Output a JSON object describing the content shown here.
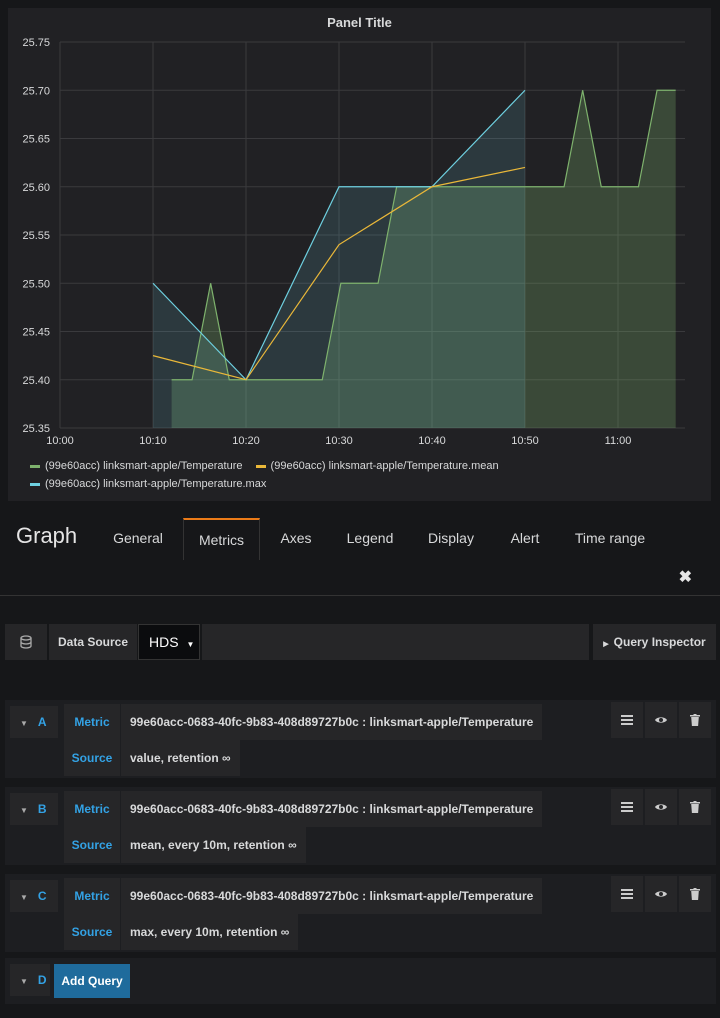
{
  "panel": {
    "title": "Panel Title"
  },
  "chart_data": {
    "type": "line",
    "title": "Panel Title",
    "xlabel": "",
    "ylabel": "",
    "ylim": [
      25.35,
      25.75
    ],
    "yticks": [
      "25.75",
      "25.70",
      "25.65",
      "25.60",
      "25.55",
      "25.50",
      "25.45",
      "25.40",
      "25.35"
    ],
    "xticks": [
      "10:00",
      "10:10",
      "10:20",
      "10:30",
      "10:40",
      "10:50",
      "11:00"
    ],
    "x_unit": "minutes after 10:00",
    "series": [
      {
        "name": "(99e60acc) linksmart-apple/Temperature",
        "color": "#7eb26d",
        "fill": true,
        "points": [
          [
            12,
            25.4
          ],
          [
            14.2,
            25.4
          ],
          [
            16.2,
            25.5
          ],
          [
            18.2,
            25.4
          ],
          [
            20.2,
            25.4
          ],
          [
            28.2,
            25.4
          ],
          [
            30.2,
            25.5
          ],
          [
            34.2,
            25.5
          ],
          [
            36.2,
            25.6
          ],
          [
            54.2,
            25.6
          ],
          [
            56.2,
            25.7
          ],
          [
            58.2,
            25.6
          ],
          [
            62.2,
            25.6
          ],
          [
            64.2,
            25.7
          ],
          [
            66.2,
            25.7
          ]
        ]
      },
      {
        "name": "(99e60acc) linksmart-apple/Temperature.mean",
        "color": "#eab839",
        "fill": false,
        "points": [
          [
            10,
            25.425
          ],
          [
            20,
            25.4
          ],
          [
            30,
            25.54
          ],
          [
            40,
            25.6
          ],
          [
            50,
            25.62
          ]
        ]
      },
      {
        "name": "(99e60acc) linksmart-apple/Temperature.max",
        "color": "#6ed0e0",
        "fill": true,
        "points": [
          [
            10,
            25.5
          ],
          [
            20,
            25.4
          ],
          [
            30,
            25.6
          ],
          [
            40,
            25.6
          ],
          [
            50,
            25.7
          ]
        ]
      }
    ],
    "legend": "bottom",
    "grid": true
  },
  "editor": {
    "title": "Graph",
    "tabs": [
      {
        "label": "General"
      },
      {
        "label": "Metrics"
      },
      {
        "label": "Axes"
      },
      {
        "label": "Legend"
      },
      {
        "label": "Display"
      },
      {
        "label": "Alert"
      },
      {
        "label": "Time range"
      }
    ],
    "active_tab": "Metrics",
    "close_symbol": "✖"
  },
  "datasource": {
    "label": "Data Source",
    "value": "HDS",
    "inspector_label": "Query Inspector"
  },
  "queries": [
    {
      "letter": "A",
      "metric_label": "Metric",
      "metric": "99e60acc-0683-40fc-9b83-408d89727b0c : linksmart-apple/Temperature",
      "source_label": "Source",
      "source": "value, retention ∞"
    },
    {
      "letter": "B",
      "metric_label": "Metric",
      "metric": "99e60acc-0683-40fc-9b83-408d89727b0c : linksmart-apple/Temperature",
      "source_label": "Source",
      "source": "mean, every 10m, retention ∞"
    },
    {
      "letter": "C",
      "metric_label": "Metric",
      "metric": "99e60acc-0683-40fc-9b83-408d89727b0c : linksmart-apple/Temperature",
      "source_label": "Source",
      "source": "max, every 10m, retention ∞"
    }
  ],
  "add_query": {
    "letter": "D",
    "label": "Add Query"
  }
}
